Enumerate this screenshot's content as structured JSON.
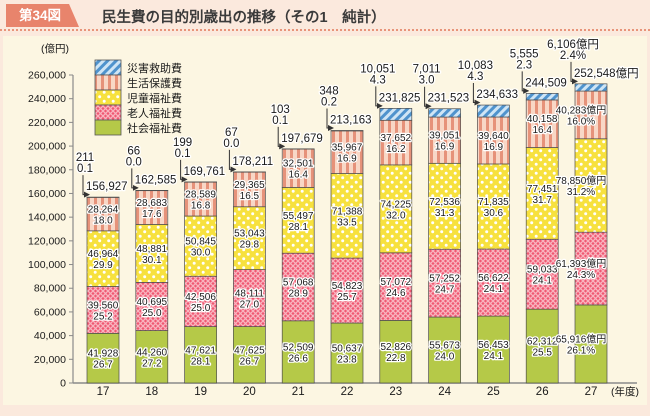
{
  "header": {
    "figure_label": "第34図",
    "title": "民生費の目的別歳出の推移（その1　純計）"
  },
  "chart_data": {
    "type": "bar",
    "stacked": true,
    "title": "民生費の目的別歳出の推移（その1　純計）",
    "unit_label": "(億円)",
    "year_axis_suffix": "(年度)",
    "ylim": [
      0,
      260000
    ],
    "ytick_step": 20000,
    "grid": false,
    "legend_position": "top-left-inside",
    "legend": [
      {
        "key": "saigai",
        "label": "災害救助費"
      },
      {
        "key": "seikatsu",
        "label": "生活保護費"
      },
      {
        "key": "jidou",
        "label": "児童福祉費"
      },
      {
        "key": "roujin",
        "label": "老人福祉費"
      },
      {
        "key": "shakai",
        "label": "社会福祉費"
      }
    ],
    "stack_order_bottom_to_top": [
      "shakai",
      "roujin",
      "jidou",
      "seikatsu",
      "saigai"
    ],
    "colors": {
      "saigai_bg": "#cfe5f5",
      "saigai_stripe": "#4f93cd",
      "seikatsu_bg": "#f8d7c6",
      "seikatsu_stripe": "#e6927a",
      "jidou_bg": "#f7e13e",
      "jidou_dot": "#ffffff",
      "roujin_bg": "#f05872",
      "roujin_hatch": "rgba(255,255,255,0.55)",
      "shakai": "#b5c948",
      "accent": "#e8846c",
      "axis": "#8a8a8a",
      "text": "#1a1a1a"
    },
    "bars": [
      {
        "year": "17",
        "total": 156927,
        "total_label": "156,927",
        "saigai": {
          "v": 211,
          "label": "211",
          "pct": "0.1"
        },
        "seikatsu": {
          "v": 28264,
          "label": "28,264",
          "pct": "18.0"
        },
        "jidou": {
          "v": 46964,
          "label": "46,964",
          "pct": "29.9"
        },
        "roujin": {
          "v": 39560,
          "label": "39,560",
          "pct": "25.2"
        },
        "shakai": {
          "v": 41928,
          "label": "41,928",
          "pct": "26.7"
        }
      },
      {
        "year": "18",
        "total": 162585,
        "total_label": "162,585",
        "saigai": {
          "v": 66,
          "label": "66",
          "pct": "0.0"
        },
        "seikatsu": {
          "v": 28683,
          "label": "28,683",
          "pct": "17.6"
        },
        "jidou": {
          "v": 48881,
          "label": "48,881",
          "pct": "30.1"
        },
        "roujin": {
          "v": 40695,
          "label": "40,695",
          "pct": "25.0"
        },
        "shakai": {
          "v": 44260,
          "label": "44,260",
          "pct": "27.2"
        }
      },
      {
        "year": "19",
        "total": 169761,
        "total_label": "169,761",
        "saigai": {
          "v": 199,
          "label": "199",
          "pct": "0.1"
        },
        "seikatsu": {
          "v": 28589,
          "label": "28,589",
          "pct": "16.8"
        },
        "jidou": {
          "v": 50845,
          "label": "50,845",
          "pct": "30.0"
        },
        "roujin": {
          "v": 42506,
          "label": "42,506",
          "pct": "25.0"
        },
        "shakai": {
          "v": 47621,
          "label": "47,621",
          "pct": "28.1"
        }
      },
      {
        "year": "20",
        "total": 178211,
        "total_label": "178,211",
        "saigai": {
          "v": 67,
          "label": "67",
          "pct": "0.0"
        },
        "seikatsu": {
          "v": 29365,
          "label": "29,365",
          "pct": "16.5"
        },
        "jidou": {
          "v": 53043,
          "label": "53,043",
          "pct": "29.8"
        },
        "roujin": {
          "v": 48111,
          "label": "48,111",
          "pct": "27.0"
        },
        "shakai": {
          "v": 47625,
          "label": "47,625",
          "pct": "26.7"
        }
      },
      {
        "year": "21",
        "total": 197679,
        "total_label": "197,679",
        "saigai": {
          "v": 103,
          "label": "103",
          "pct": "0.1"
        },
        "seikatsu": {
          "v": 32501,
          "label": "32,501",
          "pct": "16.4"
        },
        "jidou": {
          "v": 55497,
          "label": "55,497",
          "pct": "28.1"
        },
        "roujin": {
          "v": 57068,
          "label": "57,068",
          "pct": "28.9"
        },
        "shakai": {
          "v": 52509,
          "label": "52,509",
          "pct": "26.6"
        }
      },
      {
        "year": "22",
        "total": 213163,
        "total_label": "213,163",
        "saigai": {
          "v": 348,
          "label": "348",
          "pct": "0.2"
        },
        "seikatsu": {
          "v": 35967,
          "label": "35,967",
          "pct": "16.9"
        },
        "jidou": {
          "v": 71388,
          "label": "71,388",
          "pct": "33.5"
        },
        "roujin": {
          "v": 54823,
          "label": "54,823",
          "pct": "25.7"
        },
        "shakai": {
          "v": 50637,
          "label": "50,637",
          "pct": "23.8"
        }
      },
      {
        "year": "23",
        "total": 231825,
        "total_label": "231,825",
        "saigai": {
          "v": 10051,
          "label": "10,051",
          "pct": "4.3"
        },
        "seikatsu": {
          "v": 37652,
          "label": "37,652",
          "pct": "16.2"
        },
        "jidou": {
          "v": 74225,
          "label": "74,225",
          "pct": "32.0"
        },
        "roujin": {
          "v": 57072,
          "label": "57,072",
          "pct": "24.6"
        },
        "shakai": {
          "v": 52826,
          "label": "52,826",
          "pct": "22.8"
        }
      },
      {
        "year": "24",
        "total": 231523,
        "total_label": "231,523",
        "saigai": {
          "v": 7011,
          "label": "7,011",
          "pct": "3.0"
        },
        "seikatsu": {
          "v": 39051,
          "label": "39,051",
          "pct": "16.9"
        },
        "jidou": {
          "v": 72536,
          "label": "72,536",
          "pct": "31.3"
        },
        "roujin": {
          "v": 57252,
          "label": "57,252",
          "pct": "24.7"
        },
        "shakai": {
          "v": 55673,
          "label": "55,673",
          "pct": "24.0"
        }
      },
      {
        "year": "25",
        "total": 234633,
        "total_label": "234,633",
        "saigai": {
          "v": 10083,
          "label": "10,083",
          "pct": "4.3"
        },
        "seikatsu": {
          "v": 39640,
          "label": "39,640",
          "pct": "16.9"
        },
        "jidou": {
          "v": 71835,
          "label": "71,835",
          "pct": "30.6"
        },
        "roujin": {
          "v": 56622,
          "label": "56,622",
          "pct": "24.1"
        },
        "shakai": {
          "v": 56453,
          "label": "56,453",
          "pct": "24.1"
        }
      },
      {
        "year": "26",
        "total": 244509,
        "total_label": "244,509",
        "saigai": {
          "v": 5555,
          "label": "5,555",
          "pct": "2.3"
        },
        "seikatsu": {
          "v": 40158,
          "label": "40,158",
          "pct": "16.4"
        },
        "jidou": {
          "v": 77451,
          "label": "77,451",
          "pct": "31.7"
        },
        "roujin": {
          "v": 59033,
          "label": "59,033",
          "pct": "24.1"
        },
        "shakai": {
          "v": 62312,
          "label": "62,312",
          "pct": "25.5"
        }
      },
      {
        "year": "27",
        "total": 252548,
        "total_label": "252,548億円",
        "labels_outside": true,
        "saigai": {
          "v": 6106,
          "label": "6,106億円",
          "pct": "2.4%"
        },
        "seikatsu": {
          "v": 40283,
          "label": "40,283億円",
          "pct": "16.0%"
        },
        "jidou": {
          "v": 78850,
          "label": "78,850億円",
          "pct": "31.2%"
        },
        "roujin": {
          "v": 61393,
          "label": "61,393億円",
          "pct": "24.3%"
        },
        "shakai": {
          "v": 65916,
          "label": "65,916億円",
          "pct": "26.1%"
        }
      }
    ]
  }
}
